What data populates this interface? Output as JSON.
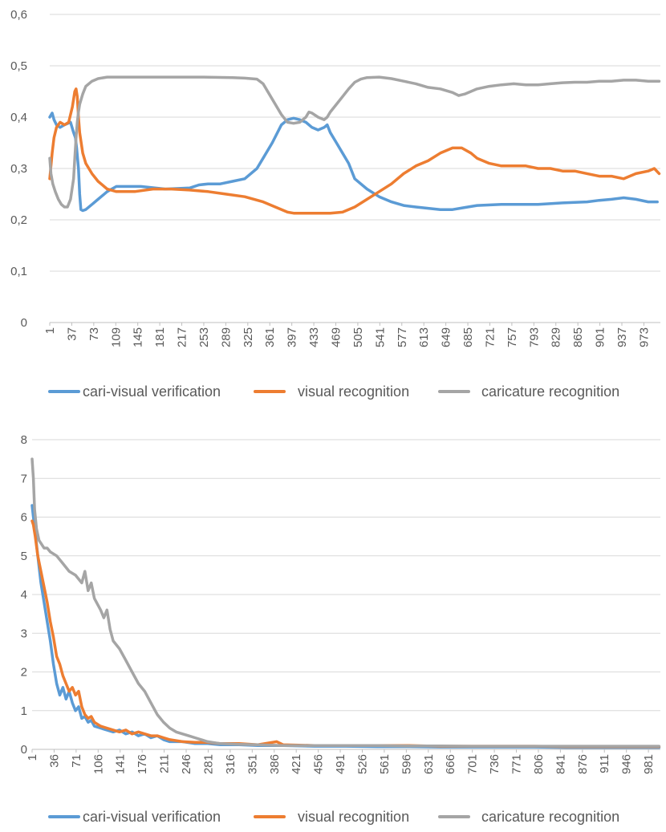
{
  "chart_data": [
    {
      "type": "line",
      "title": "",
      "xlabel": "",
      "ylabel": "",
      "ylim": [
        0,
        0.6
      ],
      "yticks": [
        "0",
        "0,1",
        "0,2",
        "0,3",
        "0,4",
        "0,5",
        "0,6"
      ],
      "xlim": [
        1,
        1000
      ],
      "xticks": [
        "1",
        "37",
        "73",
        "109",
        "145",
        "181",
        "217",
        "253",
        "289",
        "325",
        "361",
        "397",
        "433",
        "469",
        "505",
        "541",
        "577",
        "613",
        "649",
        "685",
        "721",
        "757",
        "793",
        "829",
        "865",
        "901",
        "937",
        "973"
      ],
      "grid": true,
      "legend": "bottom",
      "series": [
        {
          "name": "cari-visual verification",
          "color": "#5B9BD5",
          "x": [
            1,
            5,
            8,
            12,
            18,
            25,
            35,
            40,
            43,
            45,
            48,
            50,
            52,
            55,
            60,
            70,
            80,
            95,
            110,
            150,
            190,
            230,
            245,
            260,
            280,
            300,
            320,
            340,
            350,
            365,
            380,
            390,
            400,
            410,
            420,
            430,
            440,
            450,
            455,
            460,
            470,
            480,
            490,
            500,
            520,
            540,
            560,
            580,
            600,
            640,
            660,
            680,
            700,
            740,
            760,
            800,
            840,
            880,
            900,
            920,
            940,
            960,
            980,
            995
          ],
          "y": [
            0.4,
            0.408,
            0.395,
            0.385,
            0.38,
            0.385,
            0.39,
            0.37,
            0.36,
            0.34,
            0.3,
            0.25,
            0.22,
            0.218,
            0.22,
            0.23,
            0.24,
            0.255,
            0.265,
            0.265,
            0.26,
            0.262,
            0.268,
            0.27,
            0.27,
            0.275,
            0.28,
            0.3,
            0.32,
            0.35,
            0.385,
            0.395,
            0.398,
            0.395,
            0.39,
            0.38,
            0.375,
            0.38,
            0.385,
            0.37,
            0.35,
            0.33,
            0.31,
            0.28,
            0.26,
            0.245,
            0.235,
            0.228,
            0.225,
            0.22,
            0.22,
            0.224,
            0.228,
            0.23,
            0.23,
            0.23,
            0.233,
            0.235,
            0.238,
            0.24,
            0.243,
            0.24,
            0.235,
            0.235
          ]
        },
        {
          "name": "visual recognition",
          "color": "#ED7D31",
          "x": [
            1,
            5,
            8,
            12,
            18,
            25,
            32,
            38,
            42,
            44,
            46,
            48,
            50,
            55,
            60,
            70,
            80,
            95,
            110,
            140,
            170,
            200,
            230,
            260,
            290,
            320,
            350,
            370,
            390,
            400,
            420,
            440,
            460,
            480,
            500,
            520,
            540,
            560,
            580,
            600,
            620,
            640,
            660,
            675,
            690,
            700,
            720,
            740,
            760,
            780,
            800,
            820,
            840,
            860,
            880,
            900,
            920,
            940,
            960,
            980,
            990,
            998
          ],
          "y": [
            0.28,
            0.33,
            0.36,
            0.38,
            0.39,
            0.385,
            0.39,
            0.42,
            0.45,
            0.455,
            0.44,
            0.4,
            0.37,
            0.33,
            0.31,
            0.29,
            0.275,
            0.26,
            0.255,
            0.255,
            0.26,
            0.26,
            0.258,
            0.255,
            0.25,
            0.245,
            0.235,
            0.225,
            0.215,
            0.213,
            0.213,
            0.213,
            0.213,
            0.215,
            0.225,
            0.24,
            0.255,
            0.27,
            0.29,
            0.305,
            0.315,
            0.33,
            0.34,
            0.34,
            0.33,
            0.32,
            0.31,
            0.305,
            0.305,
            0.305,
            0.3,
            0.3,
            0.295,
            0.295,
            0.29,
            0.285,
            0.285,
            0.28,
            0.29,
            0.295,
            0.3,
            0.29
          ]
        },
        {
          "name": "caricature recognition",
          "color": "#A5A5A5",
          "x": [
            1,
            3,
            6,
            10,
            15,
            20,
            25,
            30,
            35,
            40,
            42,
            44,
            46,
            48,
            50,
            55,
            60,
            70,
            80,
            95,
            110,
            150,
            200,
            250,
            300,
            320,
            340,
            350,
            360,
            370,
            380,
            390,
            400,
            410,
            420,
            425,
            430,
            440,
            450,
            455,
            460,
            470,
            480,
            490,
            500,
            510,
            520,
            540,
            560,
            580,
            600,
            620,
            640,
            660,
            670,
            680,
            700,
            720,
            740,
            760,
            780,
            800,
            820,
            840,
            860,
            880,
            900,
            920,
            940,
            960,
            980,
            990,
            998
          ],
          "y": [
            0.32,
            0.29,
            0.27,
            0.255,
            0.24,
            0.23,
            0.225,
            0.225,
            0.24,
            0.28,
            0.32,
            0.36,
            0.39,
            0.41,
            0.425,
            0.445,
            0.46,
            0.47,
            0.475,
            0.478,
            0.478,
            0.478,
            0.478,
            0.478,
            0.477,
            0.476,
            0.474,
            0.465,
            0.445,
            0.425,
            0.405,
            0.39,
            0.388,
            0.39,
            0.4,
            0.41,
            0.408,
            0.4,
            0.395,
            0.4,
            0.41,
            0.425,
            0.44,
            0.455,
            0.468,
            0.474,
            0.477,
            0.478,
            0.475,
            0.47,
            0.465,
            0.458,
            0.455,
            0.448,
            0.442,
            0.445,
            0.455,
            0.46,
            0.463,
            0.465,
            0.463,
            0.463,
            0.465,
            0.467,
            0.468,
            0.468,
            0.47,
            0.47,
            0.472,
            0.472,
            0.47,
            0.47,
            0.47
          ]
        }
      ]
    },
    {
      "type": "line",
      "title": "",
      "xlabel": "",
      "ylabel": "",
      "ylim": [
        0,
        8
      ],
      "yticks": [
        "0",
        "1",
        "2",
        "3",
        "4",
        "5",
        "6",
        "7",
        "8"
      ],
      "xlim": [
        1,
        1000
      ],
      "xticks": [
        "1",
        "36",
        "71",
        "106",
        "141",
        "176",
        "211",
        "246",
        "281",
        "316",
        "351",
        "386",
        "421",
        "456",
        "491",
        "526",
        "561",
        "596",
        "631",
        "666",
        "701",
        "736",
        "771",
        "806",
        "841",
        "876",
        "911",
        "946",
        "981"
      ],
      "grid": true,
      "legend": "bottom",
      "series": [
        {
          "name": "cari-visual verification",
          "color": "#5B9BD5",
          "x": [
            1,
            3,
            6,
            10,
            15,
            20,
            25,
            30,
            35,
            40,
            45,
            50,
            55,
            60,
            65,
            70,
            75,
            80,
            85,
            90,
            95,
            100,
            110,
            120,
            130,
            140,
            150,
            160,
            170,
            180,
            190,
            200,
            210,
            220,
            240,
            260,
            280,
            300,
            330,
            360,
            400,
            450,
            500,
            550,
            600,
            650,
            700,
            750,
            800,
            850,
            900,
            950,
            998
          ],
          "y": [
            6.3,
            6.0,
            5.6,
            5.0,
            4.3,
            3.8,
            3.3,
            2.8,
            2.2,
            1.7,
            1.4,
            1.6,
            1.3,
            1.5,
            1.2,
            1.0,
            1.1,
            0.8,
            0.85,
            0.7,
            0.75,
            0.6,
            0.55,
            0.5,
            0.45,
            0.5,
            0.4,
            0.45,
            0.35,
            0.4,
            0.3,
            0.35,
            0.25,
            0.2,
            0.2,
            0.15,
            0.15,
            0.12,
            0.12,
            0.1,
            0.1,
            0.08,
            0.08,
            0.07,
            0.07,
            0.06,
            0.06,
            0.06,
            0.06,
            0.05,
            0.05,
            0.05,
            0.05
          ]
        },
        {
          "name": "visual recognition",
          "color": "#ED7D31",
          "x": [
            1,
            3,
            6,
            10,
            15,
            20,
            25,
            30,
            35,
            40,
            45,
            50,
            55,
            60,
            65,
            70,
            75,
            80,
            85,
            90,
            95,
            100,
            110,
            120,
            130,
            140,
            150,
            160,
            170,
            180,
            190,
            200,
            210,
            220,
            240,
            260,
            280,
            300,
            330,
            360,
            390,
            400,
            450,
            500,
            550,
            600,
            650,
            700,
            750,
            800,
            850,
            900,
            950,
            998
          ],
          "y": [
            5.9,
            5.8,
            5.5,
            5.0,
            4.6,
            4.2,
            3.8,
            3.3,
            2.9,
            2.4,
            2.2,
            1.9,
            1.7,
            1.5,
            1.6,
            1.4,
            1.5,
            1.1,
            0.9,
            0.8,
            0.85,
            0.7,
            0.6,
            0.55,
            0.5,
            0.45,
            0.5,
            0.4,
            0.45,
            0.4,
            0.35,
            0.35,
            0.3,
            0.25,
            0.2,
            0.18,
            0.18,
            0.15,
            0.15,
            0.12,
            0.2,
            0.12,
            0.1,
            0.1,
            0.1,
            0.1,
            0.08,
            0.08,
            0.08,
            0.08,
            0.07,
            0.07,
            0.07,
            0.07
          ]
        },
        {
          "name": "caricature recognition",
          "color": "#A5A5A5",
          "x": [
            1,
            3,
            5,
            8,
            12,
            16,
            20,
            25,
            30,
            40,
            50,
            60,
            70,
            80,
            85,
            90,
            95,
            100,
            110,
            115,
            120,
            125,
            130,
            140,
            150,
            160,
            170,
            180,
            190,
            200,
            210,
            220,
            230,
            240,
            250,
            260,
            270,
            280,
            300,
            330,
            360,
            400,
            450,
            500,
            550,
            600,
            650,
            700,
            750,
            800,
            850,
            900,
            950,
            998
          ],
          "y": [
            7.5,
            7.0,
            6.2,
            5.7,
            5.4,
            5.3,
            5.2,
            5.2,
            5.1,
            5.0,
            4.8,
            4.6,
            4.5,
            4.3,
            4.6,
            4.1,
            4.3,
            3.9,
            3.6,
            3.4,
            3.6,
            3.1,
            2.8,
            2.6,
            2.3,
            2.0,
            1.7,
            1.5,
            1.2,
            0.9,
            0.7,
            0.55,
            0.45,
            0.4,
            0.35,
            0.3,
            0.25,
            0.2,
            0.15,
            0.13,
            0.12,
            0.1,
            0.1,
            0.1,
            0.1,
            0.09,
            0.09,
            0.08,
            0.08,
            0.08,
            0.08,
            0.08,
            0.08,
            0.08
          ]
        }
      ]
    }
  ]
}
